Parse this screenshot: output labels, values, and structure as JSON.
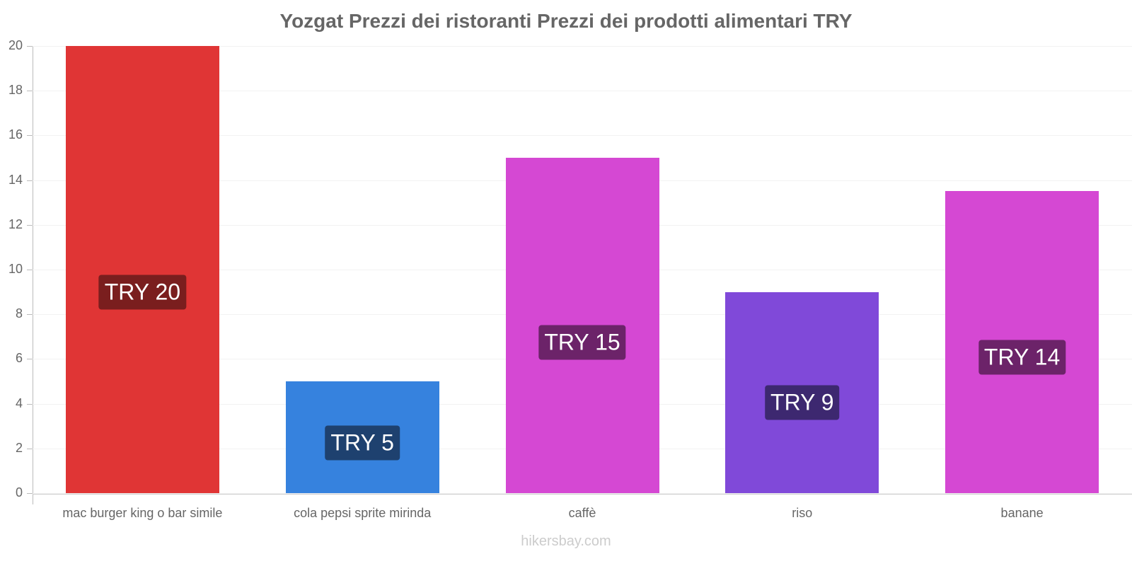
{
  "title": "Yozgat Prezzi dei ristoranti Prezzi dei prodotti alimentari TRY",
  "footer": "hikersbay.com",
  "chart_data": {
    "type": "bar",
    "title": "Yozgat Prezzi dei ristoranti Prezzi dei prodotti alimentari TRY",
    "xlabel": "",
    "ylabel": "",
    "ylim": [
      0,
      20
    ],
    "yticks": [
      0,
      2,
      4,
      6,
      8,
      10,
      12,
      14,
      16,
      18,
      20
    ],
    "grid": true,
    "categories": [
      "mac burger king o bar simile",
      "cola pepsi sprite mirinda",
      "caffè",
      "riso",
      "banane"
    ],
    "values": [
      20,
      5,
      15,
      9,
      13.5
    ],
    "data_labels": [
      "TRY 20",
      "TRY 5",
      "TRY 15",
      "TRY 9",
      "TRY 14"
    ],
    "colors": [
      "#e03535",
      "#3682de",
      "#d548d3",
      "#8049d9",
      "#d548d3"
    ],
    "label_colors": [
      "#7a1e1e",
      "#1e416f",
      "#6c2369",
      "#3d2870",
      "#6c2369"
    ]
  }
}
